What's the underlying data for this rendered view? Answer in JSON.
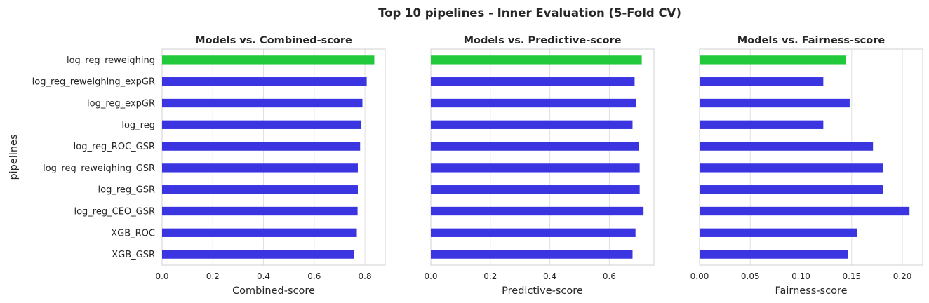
{
  "chart_data": {
    "type": "bar",
    "orientation": "horizontal",
    "suptitle": "Top 10 pipelines - Inner Evaluation (5-Fold CV)",
    "ylabel": "pipelines",
    "categories": [
      "log_reg_reweighing",
      "log_reg_reweighing_expGR",
      "log_reg_expGR",
      "log_reg",
      "log_reg_ROC_GSR",
      "log_reg_reweighing_GSR",
      "log_reg_GSR",
      "log_reg_CEO_GSR",
      "XGB_ROC",
      "XGB_GSR"
    ],
    "highlight_color": "#22c93a",
    "bar_color": "#3a35e0",
    "grid": true,
    "panels": [
      {
        "title": "Models vs. Combined-score",
        "xlabel": "Combined-score",
        "xlim": [
          0,
          0.88
        ],
        "xticks": [
          0.0,
          0.2,
          0.4,
          0.6,
          0.8
        ],
        "xtick_labels": [
          "0.0",
          "0.2",
          "0.4",
          "0.6",
          "0.8"
        ],
        "values": [
          0.837,
          0.807,
          0.79,
          0.786,
          0.781,
          0.772,
          0.772,
          0.771,
          0.768,
          0.757
        ]
      },
      {
        "title": "Models vs. Predictive-score",
        "xlabel": "Predictive-score",
        "xlim": [
          0,
          0.75
        ],
        "xticks": [
          0.0,
          0.2,
          0.4,
          0.6
        ],
        "xtick_labels": [
          "0.0",
          "0.2",
          "0.4",
          "0.6"
        ],
        "values": [
          0.709,
          0.685,
          0.69,
          0.678,
          0.7,
          0.702,
          0.702,
          0.715,
          0.688,
          0.678
        ]
      },
      {
        "title": "Models vs. Fairness-score",
        "xlabel": "Fairness-score",
        "xlim": [
          0,
          0.22
        ],
        "xticks": [
          0.0,
          0.05,
          0.1,
          0.15,
          0.2
        ],
        "xtick_labels": [
          "0.00",
          "0.05",
          "0.10",
          "0.15",
          "0.20"
        ],
        "values": [
          0.144,
          0.122,
          0.148,
          0.122,
          0.171,
          0.181,
          0.181,
          0.207,
          0.155,
          0.146
        ]
      }
    ]
  }
}
